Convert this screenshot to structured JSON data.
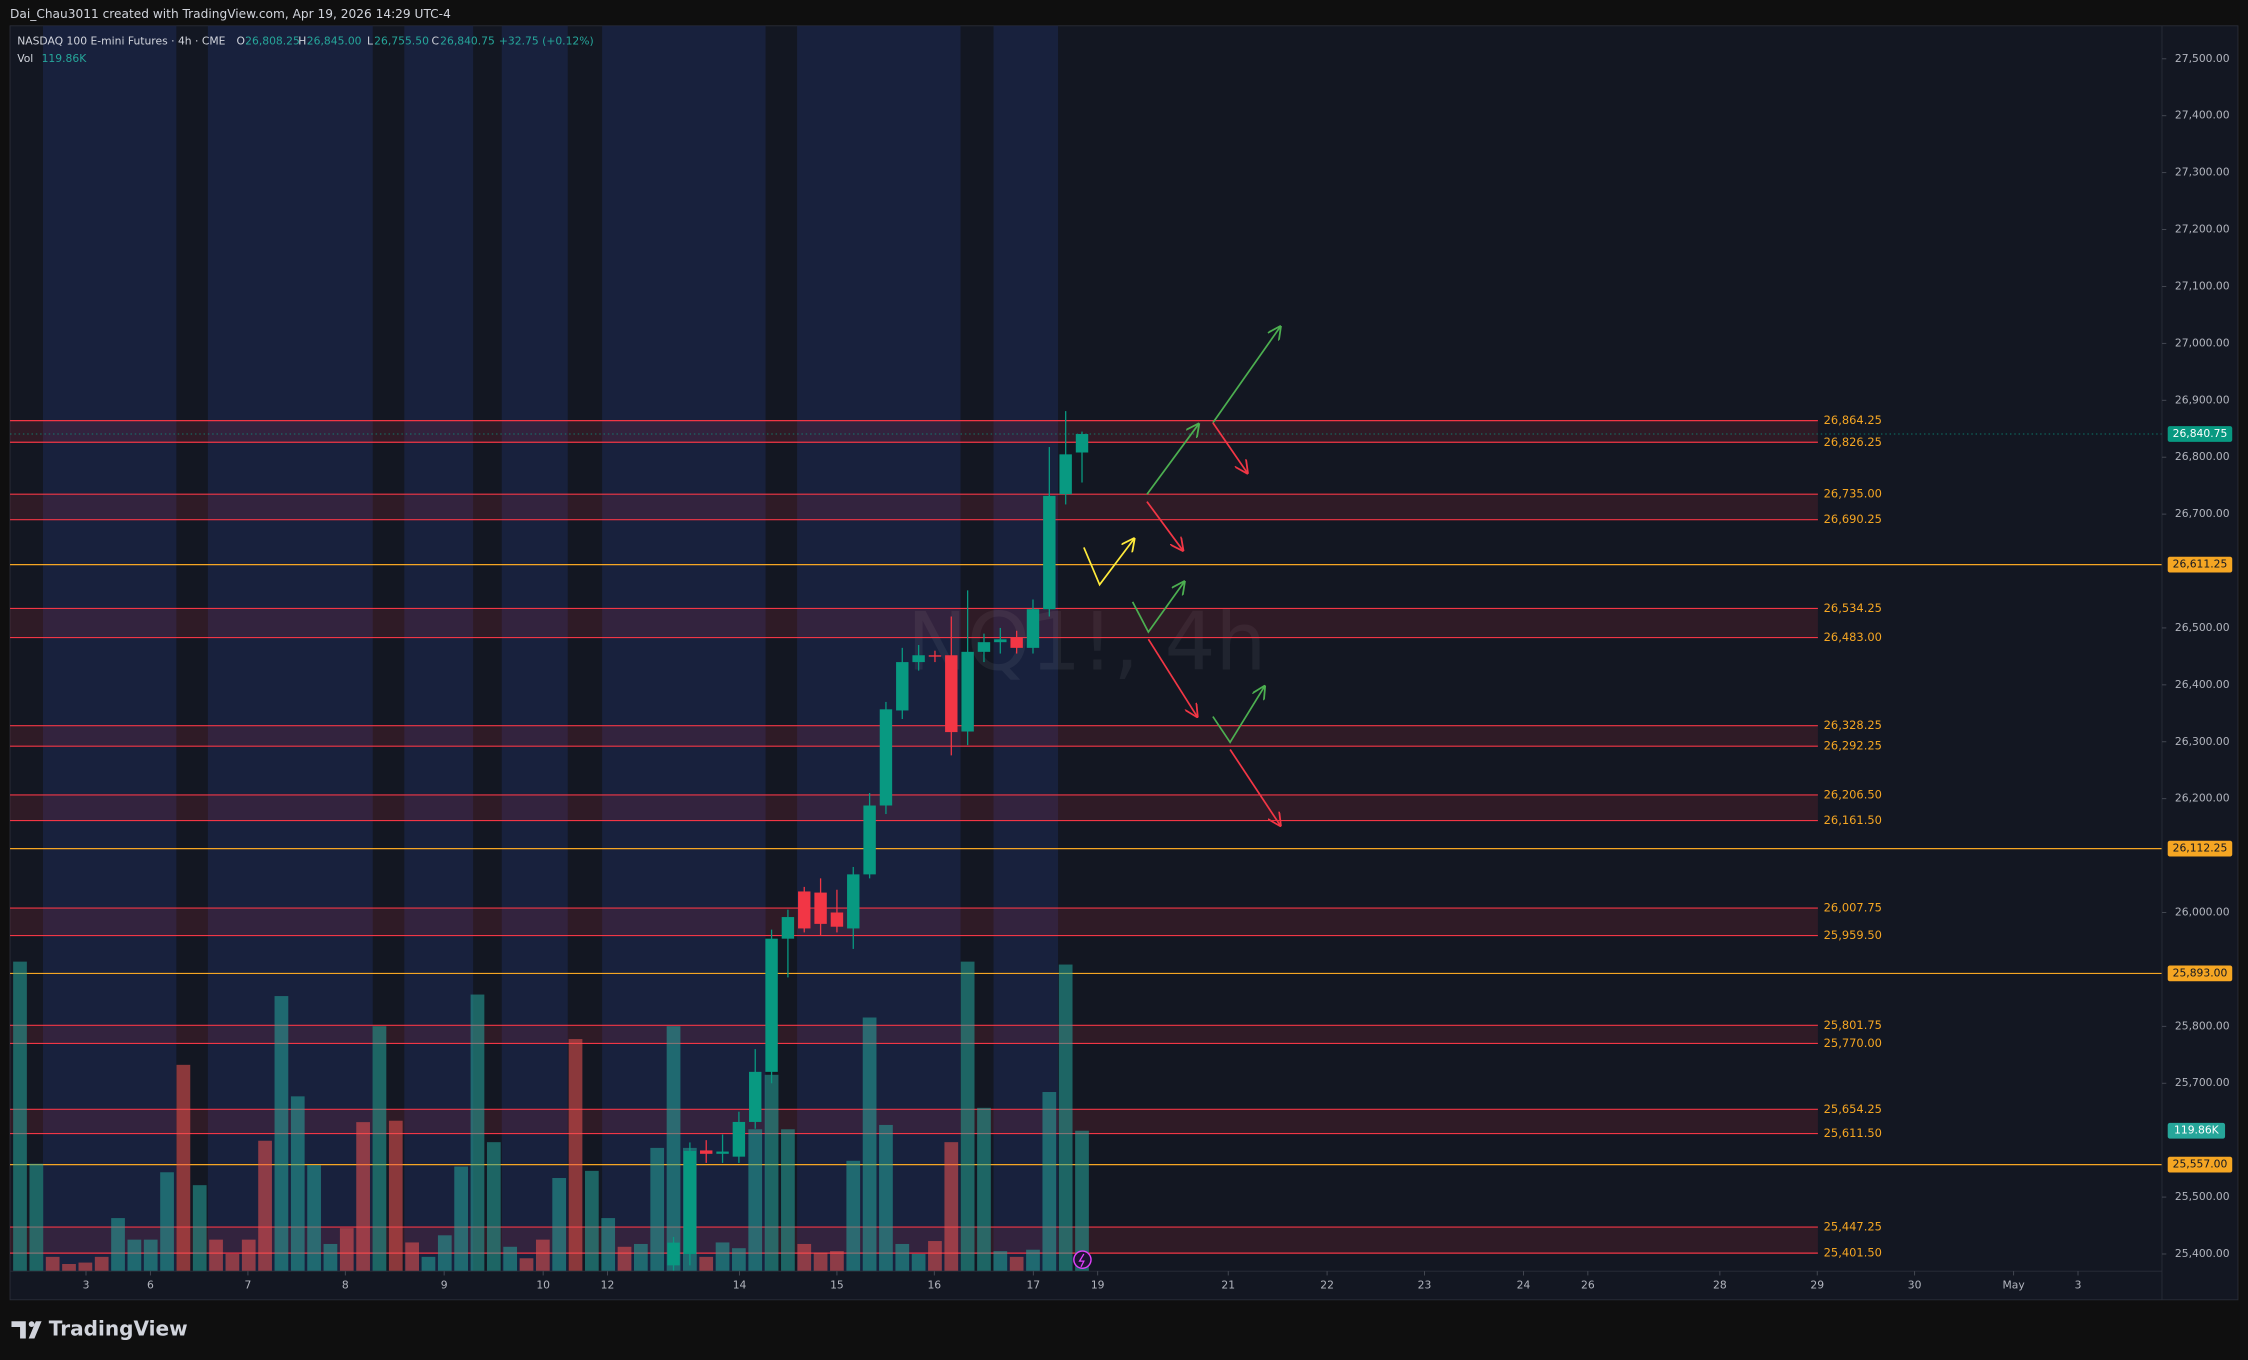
{
  "header": {
    "credit": "Dai_Chau3011 created with TradingView.com, Apr 19, 2026 14:29 UTC-4",
    "symbol": "NASDAQ 100 E-mini Futures · 4h · CME",
    "o_key": "O",
    "o_val": "26,808.25",
    "h_key": "H",
    "h_val": "26,845.00",
    "l_key": "L",
    "l_val": "26,755.50",
    "c_key": "C",
    "c_val": "26,840.75",
    "change": "+32.75 (+0.12%)",
    "vol_key": "Vol",
    "vol_val": "119.86K",
    "watermark": "NQ1!, 4h"
  },
  "footer": {
    "brand": "TradingView"
  },
  "chart_data": {
    "type": "candlestick",
    "ylim": [
      25322,
      27558
    ],
    "volume_ylim": [
      0,
      1063
    ],
    "xlim": [
      -0.61,
      131.1
    ],
    "up_color": "#089981",
    "down_color": "#f23645",
    "series": [
      {
        "name": "NQ1!",
        "open": [
          null,
          null,
          null,
          null,
          null,
          null,
          null,
          null,
          null,
          null,
          null,
          null,
          null,
          null,
          null,
          null,
          null,
          null,
          null,
          null,
          null,
          null,
          null,
          null,
          null,
          null,
          null,
          null,
          null,
          null,
          null,
          null,
          null,
          null,
          null,
          null,
          null,
          null,
          null,
          null,
          25380,
          25400,
          25582,
          25576,
          25571,
          25632,
          25720,
          25954,
          26037,
          26035,
          26000,
          25972,
          26067,
          26188,
          26355,
          26440,
          26452,
          26452,
          26318,
          26458,
          26475,
          26483,
          26465,
          26533,
          26735,
          26808.25
        ],
        "high": [
          null,
          null,
          null,
          null,
          null,
          null,
          null,
          null,
          null,
          null,
          null,
          null,
          null,
          null,
          null,
          null,
          null,
          null,
          null,
          null,
          null,
          null,
          null,
          null,
          null,
          null,
          null,
          null,
          null,
          null,
          null,
          null,
          null,
          null,
          null,
          null,
          null,
          null,
          null,
          null,
          25430,
          25596,
          25600,
          25610,
          25650,
          25760,
          25970,
          26005,
          26045,
          26060,
          26040,
          26080,
          26210,
          26370,
          26465,
          26470,
          26460,
          26520,
          26566,
          26490,
          26500,
          26495,
          26550,
          26818,
          26881,
          26845
        ],
        "low": [
          null,
          null,
          null,
          null,
          null,
          null,
          null,
          null,
          null,
          null,
          null,
          null,
          null,
          null,
          null,
          null,
          null,
          null,
          null,
          null,
          null,
          null,
          null,
          null,
          null,
          null,
          null,
          null,
          null,
          null,
          null,
          null,
          null,
          null,
          null,
          null,
          null,
          null,
          null,
          null,
          25370,
          25380,
          25560,
          25560,
          25560,
          25620,
          25700,
          25886,
          25965,
          25960,
          25965,
          25936,
          26060,
          26173,
          26340,
          26425,
          26440,
          26276,
          26294,
          26440,
          26455,
          26455,
          26455,
          26520,
          26717,
          26755.5
        ],
        "close": [
          null,
          null,
          null,
          null,
          null,
          null,
          null,
          null,
          null,
          null,
          null,
          null,
          null,
          null,
          null,
          null,
          null,
          null,
          null,
          null,
          null,
          null,
          null,
          null,
          null,
          null,
          null,
          null,
          null,
          null,
          null,
          null,
          null,
          null,
          null,
          null,
          null,
          null,
          null,
          null,
          25420,
          25581,
          25576,
          25580,
          25632,
          25720,
          25954,
          25992,
          25972,
          25980,
          25975,
          26067,
          26188,
          26357,
          26440,
          26452,
          26450,
          26317,
          26458,
          26475,
          26480,
          26465,
          26533,
          26732,
          26805,
          26840.75
        ]
      }
    ],
    "volume": {
      "name": "Vol",
      "values": [
        264.2,
        91.7,
        12.2,
        6.1,
        7.3,
        12.2,
        45.3,
        26.9,
        26.9,
        84.4,
        176.1,
        73.4,
        26.9,
        14.7,
        26.9,
        111.3,
        234.8,
        149.2,
        90.5,
        23.2,
        36.7,
        127.2,
        209.1,
        128.4,
        24.5,
        12.2,
        30.6,
        89.3,
        236.1,
        110.1,
        20.8,
        11.0,
        26.9,
        79.5,
        198.1,
        85.6,
        45.3,
        20.8,
        23.2,
        105.2,
        209.1,
        105.2,
        12.2,
        24.5,
        19.6,
        121.1,
        167.6,
        121.1,
        23.2,
        15.9,
        17.1,
        94.2,
        216.5,
        124.8,
        23.2,
        14.7,
        25.7,
        110.1,
        264.2,
        139.4,
        17.1,
        12.2,
        18.3,
        152.9,
        261.7,
        119.86
      ],
      "colors": [
        "#26a69a",
        "#26a69a",
        "#ef5350",
        "#ef5350",
        "#ef5350",
        "#ef5350",
        "#26a69a",
        "#26a69a",
        "#26a69a",
        "#26a69a",
        "#ef5350",
        "#26a69a",
        "#ef5350",
        "#ef5350",
        "#ef5350",
        "#ef5350",
        "#26a69a",
        "#26a69a",
        "#26a69a",
        "#26a69a",
        "#ef5350",
        "#ef5350",
        "#26a69a",
        "#ef5350",
        "#ef5350",
        "#26a69a",
        "#26a69a",
        "#26a69a",
        "#26a69a",
        "#26a69a",
        "#26a69a",
        "#ef5350",
        "#ef5350",
        "#26a69a",
        "#ef5350",
        "#26a69a",
        "#26a69a",
        "#ef5350",
        "#26a69a",
        "#26a69a",
        "#26a69a",
        "#26a69a",
        "#ef5350",
        "#26a69a",
        "#26a69a",
        "#26a69a",
        "#26a69a",
        "#26a69a",
        "#ef5350",
        "#ef5350",
        "#ef5350",
        "#26a69a",
        "#26a69a",
        "#26a69a",
        "#26a69a",
        "#26a69a",
        "#ef5350",
        "#ef5350",
        "#26a69a",
        "#26a69a",
        "#26a69a",
        "#ef5350",
        "#26a69a",
        "#26a69a",
        "#26a69a",
        "#26a69a"
      ]
    },
    "yticks": [
      {
        "value": 27500,
        "label": "27,500.00"
      },
      {
        "value": 27400,
        "label": "27,400.00"
      },
      {
        "value": 27300,
        "label": "27,300.00"
      },
      {
        "value": 27200,
        "label": "27,200.00"
      },
      {
        "value": 27100,
        "label": "27,100.00"
      },
      {
        "value": 27000,
        "label": "27,000.00"
      },
      {
        "value": 26900,
        "label": "26,900.00"
      },
      {
        "value": 26800,
        "label": "26,800.00"
      },
      {
        "value": 26700,
        "label": "26,700.00"
      },
      {
        "value": 26500,
        "label": "26,500.00"
      },
      {
        "value": 26400,
        "label": "26,400.00"
      },
      {
        "value": 26300,
        "label": "26,300.00"
      },
      {
        "value": 26200,
        "label": "26,200.00"
      },
      {
        "value": 26000,
        "label": "26,000.00"
      },
      {
        "value": 25800,
        "label": "25,800.00"
      },
      {
        "value": 25700,
        "label": "25,700.00"
      },
      {
        "value": 25500,
        "label": "25,500.00"
      },
      {
        "value": 25400,
        "label": "25,400.00"
      }
    ],
    "xticks": [
      {
        "value": 4.04,
        "label": "3"
      },
      {
        "value": 7.98,
        "label": "6"
      },
      {
        "value": 13.95,
        "label": "7"
      },
      {
        "value": 19.91,
        "label": "8"
      },
      {
        "value": 25.96,
        "label": "9"
      },
      {
        "value": 32.02,
        "label": "10"
      },
      {
        "value": 35.96,
        "label": "12"
      },
      {
        "value": 44.04,
        "label": "14"
      },
      {
        "value": 50.0,
        "label": "15"
      },
      {
        "value": 55.96,
        "label": "16"
      },
      {
        "value": 62.02,
        "label": "17"
      },
      {
        "value": 65.96,
        "label": "19"
      },
      {
        "value": 73.95,
        "label": "21"
      },
      {
        "value": 80.0,
        "label": "22"
      },
      {
        "value": 85.96,
        "label": "23"
      },
      {
        "value": 92.02,
        "label": "24"
      },
      {
        "value": 95.96,
        "label": "26"
      },
      {
        "value": 104.04,
        "label": "28"
      },
      {
        "value": 110.0,
        "label": "29"
      },
      {
        "value": 115.96,
        "label": "30"
      },
      {
        "value": 122.02,
        "label": "May"
      },
      {
        "value": 125.96,
        "label": "3"
      }
    ],
    "zones": [
      {
        "upper": {
          "value": 26864.25,
          "label": "26,864.25"
        },
        "lower": {
          "value": 26826.25,
          "label": "26,826.25"
        }
      },
      {
        "upper": {
          "value": 26735,
          "label": "26,735.00"
        },
        "lower": {
          "value": 26690.25,
          "label": "26,690.25"
        }
      },
      {
        "upper": {
          "value": 26534.25,
          "label": "26,534.25"
        },
        "lower": {
          "value": 26483,
          "label": "26,483.00"
        }
      },
      {
        "upper": {
          "value": 26328.25,
          "label": "26,328.25"
        },
        "lower": {
          "value": 26292.25,
          "label": "26,292.25"
        }
      },
      {
        "upper": {
          "value": 26206.5,
          "label": "26,206.50"
        },
        "lower": {
          "value": 26161.5,
          "label": "26,161.50"
        }
      },
      {
        "upper": {
          "value": 26007.75,
          "label": "26,007.75"
        },
        "lower": {
          "value": 25959.5,
          "label": "25,959.50"
        }
      },
      {
        "upper": {
          "value": 25801.75,
          "label": "25,801.75"
        },
        "lower": {
          "value": 25770,
          "label": "25,770.00"
        }
      },
      {
        "upper": {
          "value": 25654.25,
          "label": "25,654.25"
        },
        "lower": {
          "value": 25611.5,
          "label": "25,611.50"
        }
      },
      {
        "upper": {
          "value": 25447.25,
          "label": "25,447.25"
        },
        "lower": {
          "value": 25401.5,
          "label": "25,401.50"
        }
      }
    ],
    "zone_color": "#f23645",
    "level_color": "#f5a623",
    "levels": [
      {
        "value": 26611.25,
        "label": "26,611.25"
      },
      {
        "value": 26112.25,
        "label": "26,112.25"
      },
      {
        "value": 25893,
        "label": "25,893.00"
      },
      {
        "value": 25557,
        "label": "25,557.00"
      }
    ],
    "last_price": {
      "value": 26840.75,
      "label": "26,840.75"
    },
    "last_volume": {
      "value": 119.86,
      "label": "119.86K"
    }
  }
}
